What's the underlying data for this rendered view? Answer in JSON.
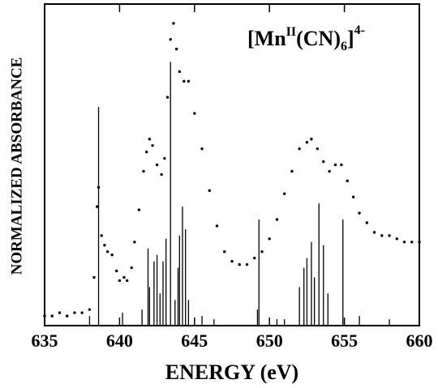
{
  "chart_data": {
    "type": "scatter",
    "x_label": "ENERGY (eV)",
    "y_label": "NORMALIZED ABSORBANCE",
    "annotation": [
      "[Mn",
      "II",
      "(CN)",
      "6",
      "]",
      "4-"
    ],
    "xlim": [
      635,
      660
    ],
    "xticks": [
      635,
      640,
      645,
      650,
      655,
      660
    ],
    "ylim": [
      0,
      1
    ],
    "series": [
      {
        "mark": "dot",
        "color": "#000000",
        "x": [
          635.0,
          635.5,
          636.0,
          636.5,
          637.0,
          637.5,
          638.0,
          638.3,
          638.5,
          638.6,
          638.8,
          639.0,
          639.2,
          639.5,
          639.8,
          640.0,
          640.3,
          640.5,
          640.8,
          641.0,
          641.3,
          641.6,
          641.8,
          642.0,
          642.2,
          642.5,
          642.8,
          643.0,
          643.2,
          643.4,
          643.6,
          643.8,
          644.0,
          644.3,
          644.6,
          645.0,
          645.5,
          646.0,
          646.5,
          647.0,
          647.5,
          648.0,
          648.5,
          649.0,
          649.5,
          650.0,
          650.5,
          651.0,
          651.5,
          652.0,
          652.5,
          652.8,
          653.2,
          653.6,
          654.0,
          654.4,
          654.8,
          655.2,
          655.6,
          656.0,
          656.5,
          657.0,
          657.5,
          658.0,
          658.5,
          659.0,
          659.5,
          660.0
        ],
        "values": [
          0.03,
          0.03,
          0.04,
          0.03,
          0.04,
          0.04,
          0.05,
          0.15,
          0.37,
          0.43,
          0.28,
          0.25,
          0.23,
          0.22,
          0.17,
          0.14,
          0.15,
          0.14,
          0.18,
          0.26,
          0.36,
          0.48,
          0.54,
          0.58,
          0.56,
          0.5,
          0.47,
          0.52,
          0.71,
          0.89,
          0.94,
          0.86,
          0.79,
          0.76,
          0.76,
          0.66,
          0.55,
          0.42,
          0.31,
          0.23,
          0.2,
          0.19,
          0.19,
          0.21,
          0.23,
          0.27,
          0.33,
          0.41,
          0.48,
          0.55,
          0.57,
          0.58,
          0.55,
          0.51,
          0.48,
          0.5,
          0.5,
          0.45,
          0.4,
          0.35,
          0.32,
          0.29,
          0.28,
          0.28,
          0.27,
          0.26,
          0.26,
          0.26
        ]
      },
      {
        "mark": "stick",
        "color": "#000000",
        "x": [
          638.0,
          638.6,
          640.2,
          641.5,
          641.9,
          642.0,
          642.3,
          642.5,
          642.7,
          642.9,
          643.1,
          643.4,
          643.7,
          643.9,
          644.0,
          644.2,
          644.4,
          644.6,
          645.5,
          646.3,
          649.2,
          649.3,
          650.5,
          651.0,
          652.0,
          652.3,
          652.5,
          652.8,
          653.0,
          653.3,
          653.6,
          653.9,
          654.9,
          656.0,
          658.0
        ],
        "values": [
          0.03,
          0.68,
          0.04,
          0.05,
          0.24,
          0.12,
          0.2,
          0.22,
          0.1,
          0.2,
          0.27,
          0.82,
          0.08,
          0.18,
          0.28,
          0.37,
          0.3,
          0.08,
          0.03,
          0.02,
          0.05,
          0.33,
          0.02,
          0.02,
          0.12,
          0.18,
          0.21,
          0.26,
          0.15,
          0.38,
          0.25,
          0.1,
          0.33,
          0.03,
          0.02
        ]
      }
    ]
  }
}
